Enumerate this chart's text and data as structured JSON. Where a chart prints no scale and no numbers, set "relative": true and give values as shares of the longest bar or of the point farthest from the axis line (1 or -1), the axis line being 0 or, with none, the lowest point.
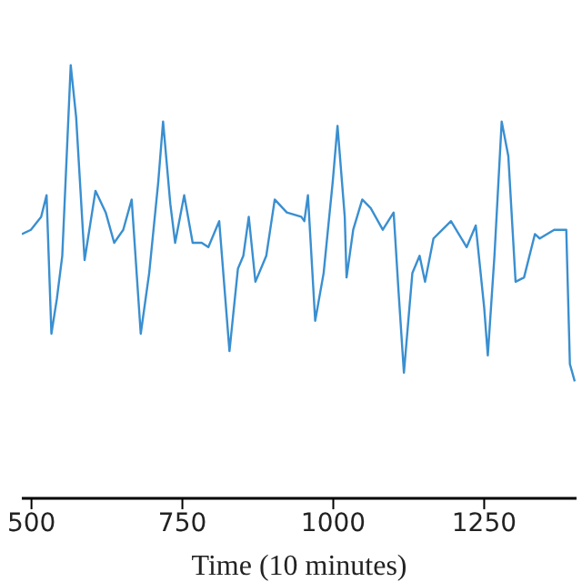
{
  "chart_data": {
    "type": "line",
    "xlabel": "Time (10 minutes)",
    "relative": true,
    "xlim": [
      484,
      1403
    ],
    "xticks": [
      500,
      750,
      1000,
      1250
    ],
    "grid": false,
    "legend": false,
    "marker": "none",
    "line_style": "solid",
    "x": [
      484,
      499,
      516,
      525,
      533,
      542,
      551,
      565,
      574,
      588,
      606,
      623,
      637,
      652,
      666,
      681,
      695,
      710,
      718,
      730,
      738,
      753,
      767,
      782,
      793,
      811,
      828,
      842,
      851,
      860,
      871,
      889,
      903,
      923,
      947,
      952,
      958,
      970,
      984,
      999,
      1007,
      1019,
      1022,
      1033,
      1048,
      1062,
      1082,
      1100,
      1108,
      1117,
      1131,
      1143,
      1152,
      1166,
      1195,
      1221,
      1236,
      1250,
      1256,
      1267,
      1279,
      1290,
      1302,
      1316,
      1334,
      1342,
      1366,
      1386,
      1392,
      1400
    ],
    "series": [
      {
        "color": "#3a8fd0",
        "values": [
          0.61,
          0.62,
          0.65,
          0.7,
          0.38,
          0.46,
          0.56,
          1.0,
          0.88,
          0.55,
          0.71,
          0.66,
          0.59,
          0.62,
          0.69,
          0.38,
          0.52,
          0.73,
          0.87,
          0.68,
          0.59,
          0.7,
          0.59,
          0.59,
          0.58,
          0.64,
          0.34,
          0.53,
          0.56,
          0.65,
          0.5,
          0.56,
          0.69,
          0.66,
          0.65,
          0.64,
          0.7,
          0.41,
          0.52,
          0.73,
          0.86,
          0.65,
          0.51,
          0.62,
          0.69,
          0.67,
          0.62,
          0.66,
          0.48,
          0.29,
          0.52,
          0.56,
          0.5,
          0.6,
          0.64,
          0.58,
          0.63,
          0.44,
          0.33,
          0.56,
          0.87,
          0.79,
          0.5,
          0.51,
          0.61,
          0.6,
          0.62,
          0.62,
          0.31,
          0.27
        ]
      }
    ]
  }
}
